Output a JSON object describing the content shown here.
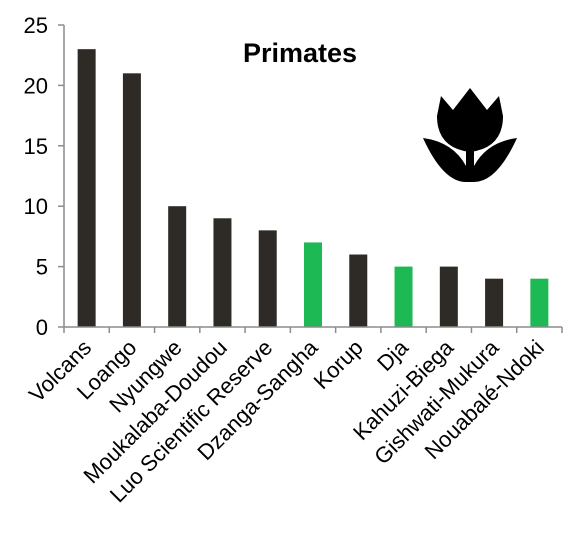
{
  "chart_data": {
    "type": "bar",
    "title": "Primates",
    "xlabel": "",
    "ylabel": "",
    "ylim": [
      0,
      25
    ],
    "yticks": [
      0,
      5,
      10,
      15,
      20,
      25
    ],
    "grid": false,
    "legend": "none",
    "icon": "tulip-icon",
    "categories": [
      "Volcans",
      "Loango",
      "Nyungwe",
      "Moukalaba-Doudou",
      "Luo Scientific Reserve",
      "Dzanga-Sangha",
      "Korup",
      "Dja",
      "Kahuzi-Biega",
      "Gishwati-Mukura",
      "Nouabalé-Ndoki"
    ],
    "values": [
      23,
      21,
      10,
      9,
      8,
      7,
      6,
      5,
      5,
      4,
      4
    ],
    "bar_colors": [
      "#2e2b26",
      "#2e2b26",
      "#2e2b26",
      "#2e2b26",
      "#2e2b26",
      "#1db954",
      "#2e2b26",
      "#1db954",
      "#2e2b26",
      "#2e2b26",
      "#1db954"
    ],
    "axis_color": "#8c8c8c"
  }
}
